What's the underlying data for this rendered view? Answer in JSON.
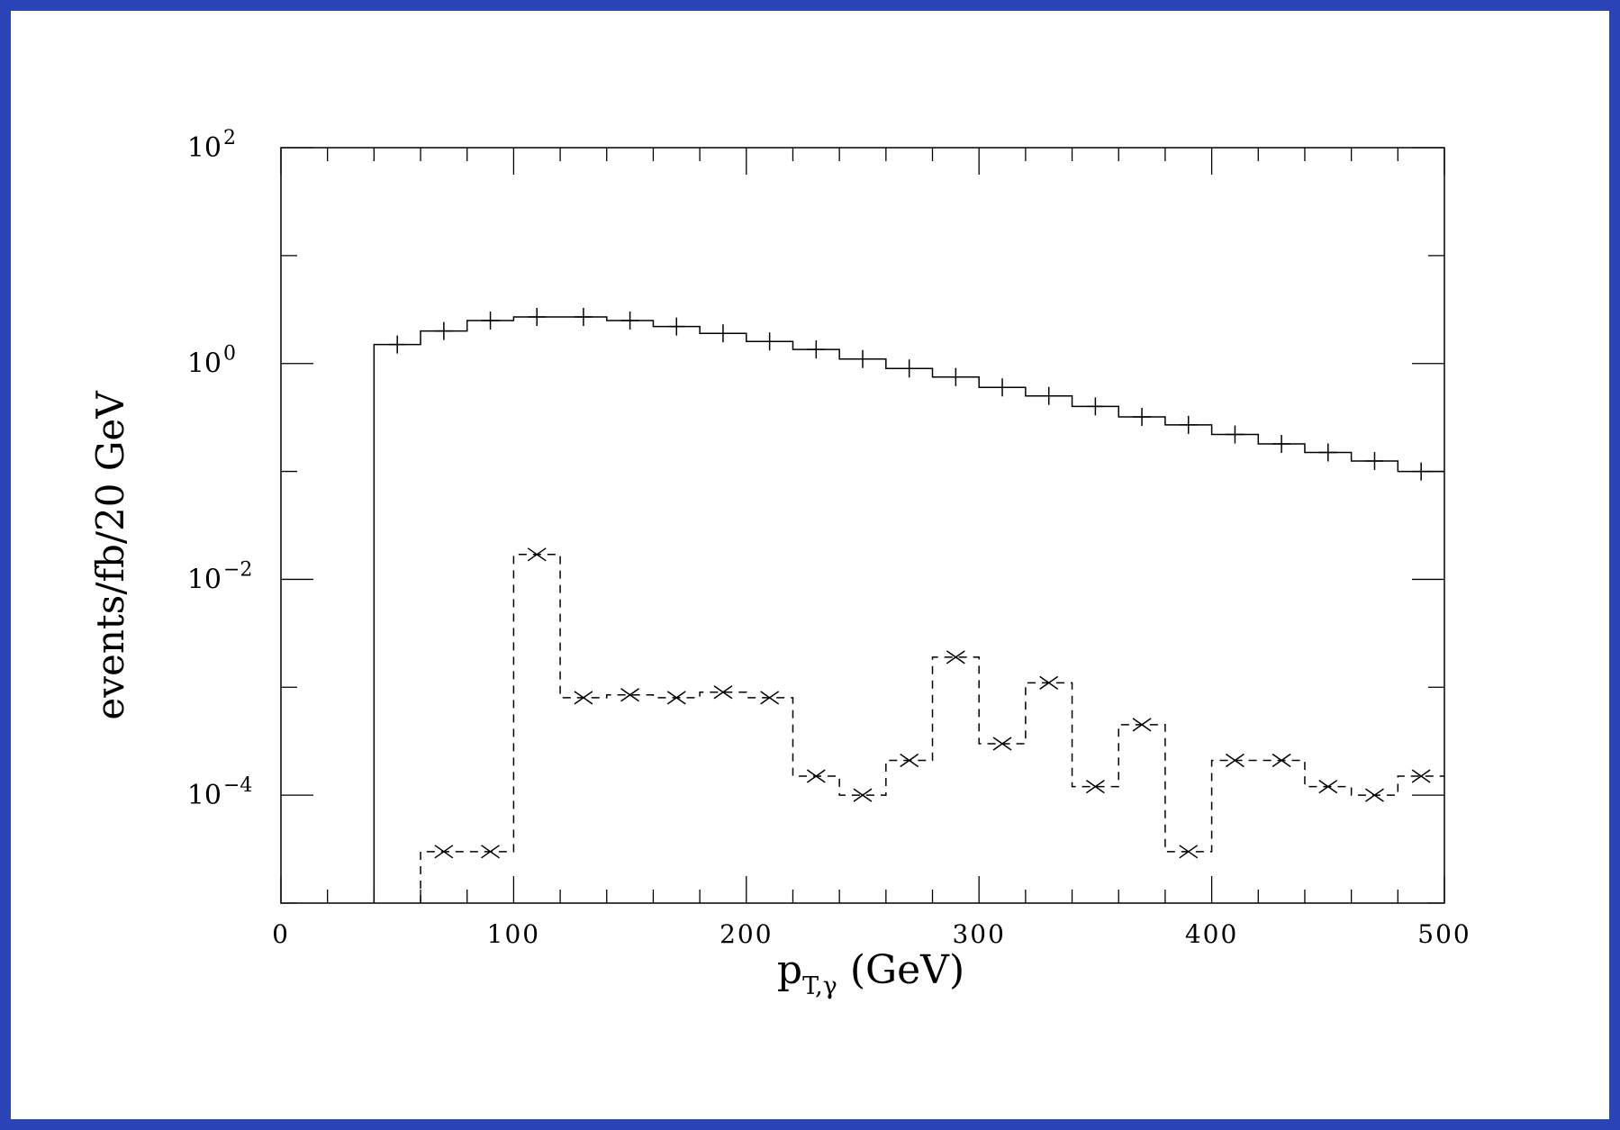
{
  "chart_data": {
    "type": "line",
    "step": true,
    "xlabel": {
      "main": "p",
      "sub": "T,γ",
      "unit": " (GeV)"
    },
    "ylabel": "events/fb/20 GeV",
    "xlim": [
      0,
      500
    ],
    "ylim_log10": [
      -5,
      2
    ],
    "log_y": true,
    "bin_width": 20,
    "x_ticks": [
      "0",
      "100",
      "200",
      "300",
      "400",
      "500"
    ],
    "y_ticks": [
      {
        "base": "10",
        "exp": "2",
        "value": 100
      },
      {
        "base": "10",
        "exp": "0",
        "value": 1
      },
      {
        "base": "10",
        "exp": "−2",
        "value": 0.01
      },
      {
        "base": "10",
        "exp": "−4",
        "value": 0.0001
      }
    ],
    "grid": false,
    "series": [
      {
        "style": "solid",
        "marker": "plus",
        "x_left": [
          40,
          60,
          80,
          100,
          120,
          140,
          160,
          180,
          200,
          220,
          240,
          260,
          280,
          300,
          320,
          340,
          360,
          380,
          400,
          420,
          440,
          460,
          480
        ],
        "values": [
          1.5,
          2.0,
          2.5,
          2.7,
          2.7,
          2.5,
          2.2,
          1.9,
          1.6,
          1.35,
          1.1,
          0.9,
          0.75,
          0.6,
          0.5,
          0.4,
          0.32,
          0.27,
          0.22,
          0.18,
          0.15,
          0.125,
          0.1
        ]
      },
      {
        "style": "dashed",
        "marker": "cross",
        "x_left": [
          60,
          80,
          100,
          120,
          140,
          160,
          180,
          200,
          220,
          240,
          260,
          280,
          300,
          320,
          340,
          360,
          380,
          400,
          420,
          440,
          460,
          480
        ],
        "values": [
          3e-05,
          3e-05,
          0.017,
          0.0008,
          0.00085,
          0.0008,
          0.0009,
          0.0008,
          0.00015,
          0.0001,
          0.00021,
          0.0019,
          0.0003,
          0.0011,
          0.00012,
          0.00045,
          3e-05,
          0.00021,
          0.00021,
          0.00012,
          0.0001,
          0.00015
        ]
      }
    ]
  }
}
